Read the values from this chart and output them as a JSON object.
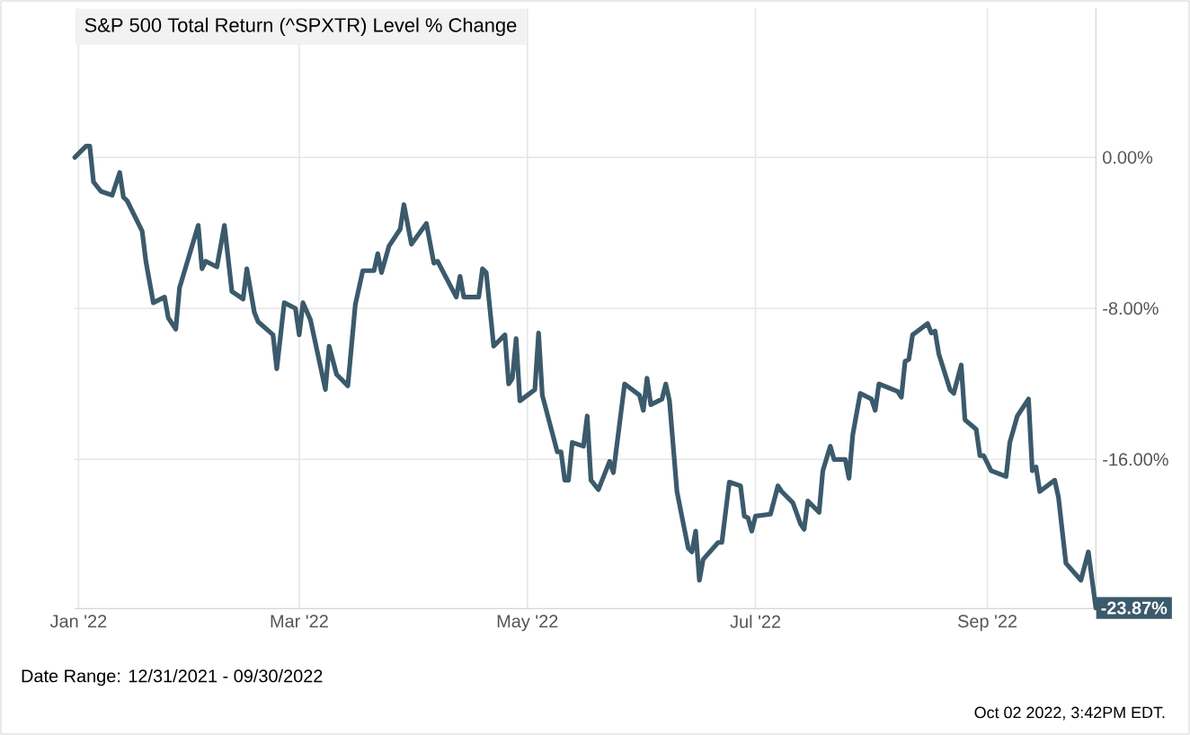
{
  "chart_data": {
    "type": "line",
    "title": "S&P 500 Total Return (^SPXTR) Level % Change",
    "x": [
      "2021-12-31",
      "2022-01-03",
      "2022-01-04",
      "2022-01-05",
      "2022-01-07",
      "2022-01-10",
      "2022-01-12",
      "2022-01-13",
      "2022-01-14",
      "2022-01-18",
      "2022-01-19",
      "2022-01-21",
      "2022-01-24",
      "2022-01-25",
      "2022-01-27",
      "2022-01-28",
      "2022-02-02",
      "2022-02-03",
      "2022-02-04",
      "2022-02-07",
      "2022-02-09",
      "2022-02-11",
      "2022-02-14",
      "2022-02-15",
      "2022-02-17",
      "2022-02-18",
      "2022-02-22",
      "2022-02-23",
      "2022-02-25",
      "2022-02-28",
      "2022-03-01",
      "2022-03-02",
      "2022-03-04",
      "2022-03-08",
      "2022-03-09",
      "2022-03-11",
      "2022-03-14",
      "2022-03-16",
      "2022-03-18",
      "2022-03-21",
      "2022-03-22",
      "2022-03-23",
      "2022-03-25",
      "2022-03-28",
      "2022-03-29",
      "2022-03-31",
      "2022-04-04",
      "2022-04-06",
      "2022-04-07",
      "2022-04-12",
      "2022-04-13",
      "2022-04-14",
      "2022-04-18",
      "2022-04-19",
      "2022-04-20",
      "2022-04-22",
      "2022-04-25",
      "2022-04-26",
      "2022-04-27",
      "2022-04-28",
      "2022-04-29",
      "2022-05-03",
      "2022-05-04",
      "2022-05-05",
      "2022-05-09",
      "2022-05-10",
      "2022-05-11",
      "2022-05-12",
      "2022-05-13",
      "2022-05-16",
      "2022-05-17",
      "2022-05-18",
      "2022-05-20",
      "2022-05-23",
      "2022-05-24",
      "2022-05-27",
      "2022-05-31",
      "2022-06-01",
      "2022-06-02",
      "2022-06-03",
      "2022-06-06",
      "2022-06-07",
      "2022-06-08",
      "2022-06-10",
      "2022-06-13",
      "2022-06-14",
      "2022-06-15",
      "2022-06-16",
      "2022-06-17",
      "2022-06-21",
      "2022-06-22",
      "2022-06-24",
      "2022-06-27",
      "2022-06-28",
      "2022-06-29",
      "2022-06-30",
      "2022-07-01",
      "2022-07-05",
      "2022-07-07",
      "2022-07-08",
      "2022-07-11",
      "2022-07-13",
      "2022-07-14",
      "2022-07-15",
      "2022-07-18",
      "2022-07-19",
      "2022-07-21",
      "2022-07-22",
      "2022-07-25",
      "2022-07-26",
      "2022-07-27",
      "2022-07-29",
      "2022-08-01",
      "2022-08-02",
      "2022-08-03",
      "2022-08-08",
      "2022-08-09",
      "2022-08-10",
      "2022-08-11",
      "2022-08-12",
      "2022-08-16",
      "2022-08-17",
      "2022-08-18",
      "2022-08-19",
      "2022-08-22",
      "2022-08-23",
      "2022-08-25",
      "2022-08-26",
      "2022-08-29",
      "2022-08-30",
      "2022-08-31",
      "2022-09-02",
      "2022-09-06",
      "2022-09-07",
      "2022-09-09",
      "2022-09-12",
      "2022-09-13",
      "2022-09-14",
      "2022-09-15",
      "2022-09-19",
      "2022-09-20",
      "2022-09-22",
      "2022-09-26",
      "2022-09-28",
      "2022-09-30"
    ],
    "series": [
      {
        "color": "#3b5a6b",
        "values": [
          0.0,
          0.6,
          0.6,
          -1.3,
          -1.8,
          -2.0,
          -0.8,
          -2.1,
          -2.3,
          -3.9,
          -5.5,
          -7.7,
          -7.4,
          -8.5,
          -9.1,
          -6.9,
          -3.6,
          -5.9,
          -5.5,
          -5.8,
          -3.6,
          -7.1,
          -7.5,
          -5.9,
          -8.2,
          -8.7,
          -9.4,
          -11.2,
          -7.7,
          -8.0,
          -9.4,
          -7.7,
          -8.6,
          -12.3,
          -10.0,
          -11.5,
          -12.1,
          -7.8,
          -6.0,
          -6.0,
          -5.1,
          -6.1,
          -4.7,
          -3.8,
          -2.5,
          -4.6,
          -3.5,
          -5.6,
          -5.5,
          -7.4,
          -6.3,
          -7.4,
          -7.4,
          -5.9,
          -6.1,
          -10.0,
          -9.4,
          -12.0,
          -11.7,
          -9.6,
          -12.9,
          -12.3,
          -9.3,
          -12.6,
          -15.6,
          -15.6,
          -17.1,
          -17.1,
          -15.1,
          -15.3,
          -13.7,
          -17.1,
          -17.6,
          -16.1,
          -16.7,
          -12.0,
          -12.6,
          -13.4,
          -11.7,
          -13.1,
          -12.8,
          -12.0,
          -12.9,
          -17.7,
          -20.7,
          -20.9,
          -19.8,
          -22.4,
          -21.3,
          -20.4,
          -20.4,
          -17.2,
          -17.4,
          -19.0,
          -19.1,
          -19.8,
          -19.0,
          -18.9,
          -17.4,
          -17.7,
          -18.3,
          -19.4,
          -19.7,
          -18.2,
          -18.8,
          -16.6,
          -15.3,
          -16.0,
          -16.0,
          -17.0,
          -14.7,
          -12.5,
          -12.8,
          -13.4,
          -12.0,
          -12.4,
          -12.7,
          -10.8,
          -10.7,
          -9.4,
          -8.8,
          -9.3,
          -9.2,
          -10.4,
          -12.3,
          -12.5,
          -11.0,
          -13.9,
          -14.4,
          -15.8,
          -15.8,
          -16.6,
          -16.9,
          -15.1,
          -13.7,
          -12.8,
          -16.6,
          -16.4,
          -17.7,
          -17.1,
          -18.0,
          -21.5,
          -22.4,
          -20.9,
          -23.87
        ]
      }
    ],
    "xlim": [
      "2021-12-31",
      "2022-09-30"
    ],
    "xticks": [
      {
        "value": "2022-01-01",
        "label": "Jan '22"
      },
      {
        "value": "2022-03-01",
        "label": "Mar '22"
      },
      {
        "value": "2022-05-01",
        "label": "May '22"
      },
      {
        "value": "2022-07-01",
        "label": "Jul '22"
      },
      {
        "value": "2022-09-01",
        "label": "Sep '22"
      }
    ],
    "ylim": [
      -23.9,
      7.9
    ],
    "yticks": [
      {
        "value": 0,
        "label": "0.00%"
      },
      {
        "value": -8,
        "label": "-8.00%"
      },
      {
        "value": -16,
        "label": "-16.00%"
      }
    ],
    "grid": true,
    "annotations": [
      {
        "text": "-23.87%",
        "x": "2022-09-30",
        "y": -23.87
      },
      "Date Range: 12/31/2021 - 09/30/2022",
      "Oct 02 2022, 3:42PM EDT."
    ]
  }
}
